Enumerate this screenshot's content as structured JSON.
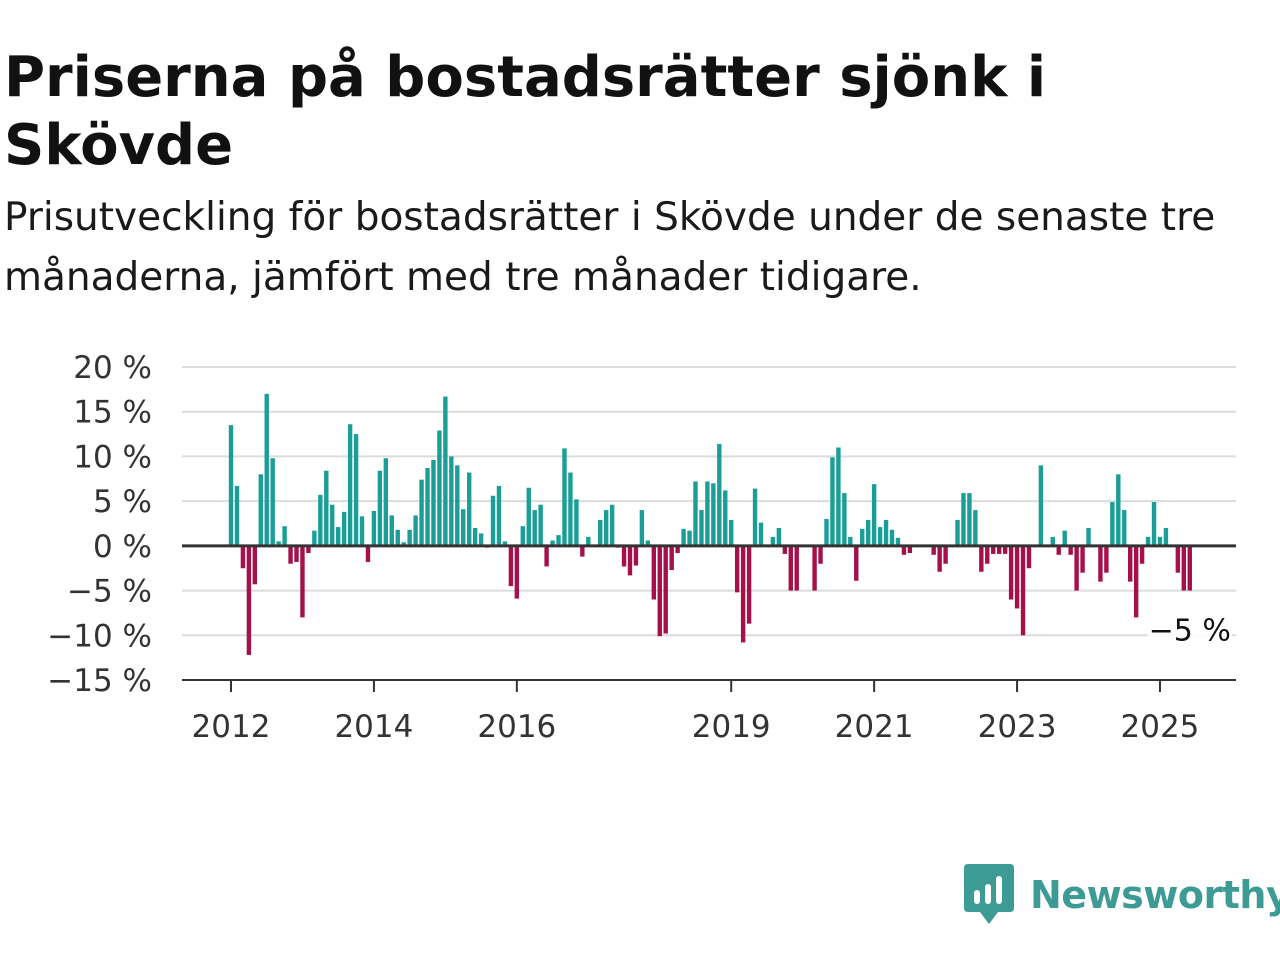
{
  "header": {
    "title": "Priserna på bostadsrätter sjönk i Skövde",
    "subtitle": "Prisutveckling för bostadsrätter i Skövde under de senaste tre månaderna, jämfört med tre månader tidigare."
  },
  "brand": {
    "name": "Newsworthy",
    "color": "#3d9b95"
  },
  "chart_data": {
    "type": "bar",
    "unit": "%",
    "x_start": "2012-01",
    "x_step": "month",
    "x_tick_labels": [
      "2012",
      "2014",
      "2016",
      "2019",
      "2021",
      "2023",
      "2025"
    ],
    "y_tick_labels": [
      "20 %",
      "15 %",
      "10 %",
      "5 %",
      "0 %",
      "−5 %",
      "−10 %",
      "−15 %"
    ],
    "ylim": [
      -15,
      20
    ],
    "grid": true,
    "legend": "none",
    "positive_color": "#1a9e97",
    "negative_color": "#a6104a",
    "annotation": {
      "text": "−5 %",
      "value": -5,
      "position": "last bar"
    },
    "values": [
      13.5,
      6.7,
      -2.5,
      -12.2,
      -4.3,
      8.0,
      17.0,
      9.8,
      0.5,
      2.2,
      -2.0,
      -1.8,
      -8.0,
      -0.8,
      1.7,
      5.7,
      8.4,
      4.6,
      2.1,
      3.8,
      13.6,
      12.5,
      3.3,
      -1.8,
      3.9,
      8.4,
      9.8,
      3.4,
      1.8,
      0.4,
      1.8,
      3.4,
      7.4,
      8.7,
      9.6,
      12.9,
      16.7,
      10.0,
      9.0,
      4.1,
      8.2,
      2.0,
      1.4,
      -0.2,
      5.6,
      6.7,
      0.5,
      -4.5,
      -5.9,
      2.2,
      6.5,
      4.0,
      4.6,
      -2.3,
      0.6,
      1.2,
      10.9,
      8.2,
      5.2,
      -1.2,
      1.0,
      -0.1,
      2.9,
      4.0,
      4.6,
      -0.2,
      -2.3,
      -3.3,
      -2.2,
      4.0,
      0.6,
      -6.0,
      -10.1,
      -9.8,
      -2.7,
      -0.8,
      1.9,
      1.7,
      7.2,
      4.0,
      7.2,
      7.0,
      11.4,
      6.2,
      2.9,
      -5.2,
      -10.8,
      -8.7,
      6.4,
      2.6,
      0.1,
      1.0,
      2.0,
      -0.9,
      -5.0,
      -5.0,
      -0.1,
      -0.1,
      -5.0,
      -2.0,
      3.0,
      9.9,
      11.0,
      5.9,
      1.0,
      -3.9,
      1.9,
      2.9,
      6.9,
      2.1,
      2.9,
      1.8,
      0.9,
      -1.0,
      -0.8,
      -0.1,
      -0.1,
      -0.1,
      -1.0,
      -2.9,
      -2.0,
      -0.1,
      2.9,
      5.9,
      5.9,
      4.0,
      -2.9,
      -2.0,
      -0.9,
      -0.9,
      -0.9,
      -6.0,
      -7.0,
      -10.0,
      -2.5,
      -0.1,
      9.0,
      -0.1,
      1.0,
      -1.0,
      1.7,
      -1.0,
      -5.0,
      -3.0,
      2.0,
      -0.1,
      -4.0,
      -3.0,
      4.9,
      8.0,
      4.0,
      -4.0,
      -8.0,
      -2.0,
      1.0,
      4.9,
      1.0,
      2.0,
      -0.1,
      -3.0,
      -5.0,
      -5.0
    ]
  }
}
